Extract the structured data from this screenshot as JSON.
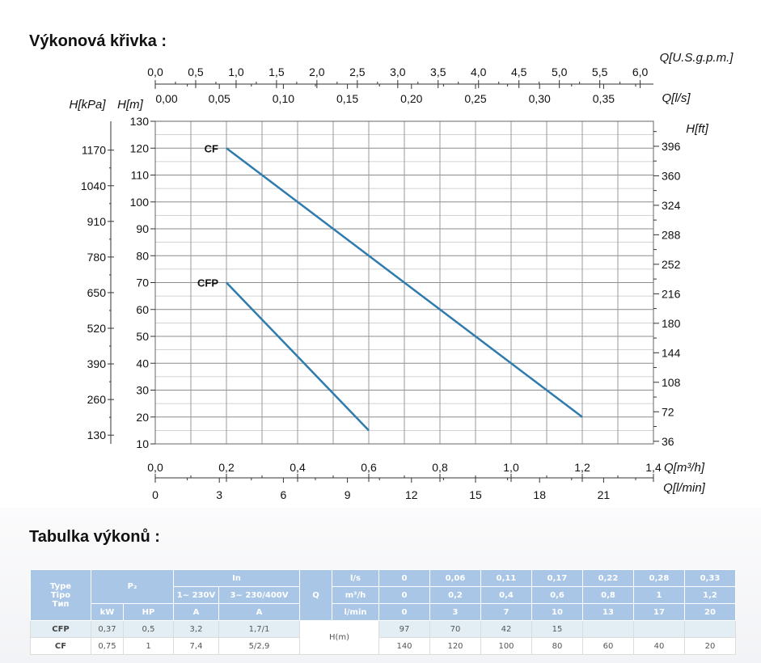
{
  "page": {
    "chart_title": "Výkonová křivka :",
    "table_title": "Tabulka výkonů :"
  },
  "colors": {
    "curve": "#2f7bae",
    "grid": "#9a9a9a",
    "table_header": "#a9c6e6",
    "cfp_row": "#e3eef4"
  },
  "chart_data": {
    "type": "line",
    "xlabel": "Q[m³/h]",
    "ylabel": "H[m]",
    "xlim": [
      0,
      1.4
    ],
    "ylim": [
      10,
      130
    ],
    "grid": true,
    "series": [
      {
        "name": "CF",
        "x": [
          0.2,
          1.2
        ],
        "y": [
          120,
          20
        ]
      },
      {
        "name": "CFP",
        "x": [
          0.2,
          0.6
        ],
        "y": [
          70,
          15
        ]
      }
    ],
    "axes": {
      "left_m": {
        "label": "H[m]",
        "ticks": [
          10,
          20,
          30,
          40,
          50,
          60,
          70,
          80,
          90,
          100,
          110,
          120,
          130
        ]
      },
      "left_kpa": {
        "label": "H[kPa]",
        "ticks": [
          130,
          260,
          390,
          520,
          650,
          780,
          910,
          1040,
          1170
        ]
      },
      "right_ft": {
        "label": "H[ft]",
        "ticks": [
          36,
          72,
          108,
          144,
          180,
          216,
          252,
          288,
          324,
          360,
          396
        ]
      },
      "top_usgpm": {
        "label": "Q[U.S.g.p.m.]",
        "ticks": [
          "0,0",
          "0,5",
          "1,0",
          "1,5",
          "2,0",
          "2,5",
          "3,0",
          "3,5",
          "4,0",
          "4,5",
          "5,0",
          "5,5",
          "6,0"
        ]
      },
      "top_ls": {
        "label": "Q[l/s]",
        "ticks": [
          "0,00",
          "0,05",
          "0,10",
          "0,15",
          "0,20",
          "0,25",
          "0,30",
          "0,35"
        ]
      },
      "bottom_m3h": {
        "label": "Q[m³/h]",
        "ticks": [
          "0,0",
          "0,2",
          "0,4",
          "0,6",
          "0,8",
          "1,0",
          "1,2",
          "1,4"
        ]
      },
      "bottom_lmin": {
        "label": "Q[l/min]",
        "ticks": [
          "0",
          "3",
          "6",
          "9",
          "12",
          "15",
          "18",
          "21"
        ]
      }
    }
  },
  "table": {
    "type_labels": [
      "Type",
      "Tipo",
      "Тип"
    ],
    "p2": "P₂",
    "in": "In",
    "phase1": "1~ 230V",
    "phase3": "3~ 230/400V",
    "q": "Q",
    "units": {
      "kw": "kW",
      "hp": "HP",
      "a1": "A",
      "a3": "A"
    },
    "flow_rows": [
      {
        "unit": "l/s",
        "values": [
          "0",
          "0,06",
          "0,11",
          "0,17",
          "0,22",
          "0,28",
          "0,33"
        ]
      },
      {
        "unit": "m³/h",
        "values": [
          "0",
          "0,2",
          "0,4",
          "0,6",
          "0,8",
          "1",
          "1,2"
        ]
      },
      {
        "unit": "l/min",
        "values": [
          "0",
          "3",
          "7",
          "10",
          "13",
          "17",
          "20"
        ]
      }
    ],
    "h_label": "H(m)",
    "rows": [
      {
        "type": "CFP",
        "kw": "0,37",
        "hp": "0,5",
        "a1": "3,2",
        "a3": "1,7/1",
        "h": [
          "97",
          "70",
          "42",
          "15",
          "",
          "",
          ""
        ]
      },
      {
        "type": "CF",
        "kw": "0,75",
        "hp": "1",
        "a1": "7,4",
        "a3": "5/2,9",
        "h": [
          "140",
          "120",
          "100",
          "80",
          "60",
          "40",
          "20"
        ]
      }
    ]
  }
}
